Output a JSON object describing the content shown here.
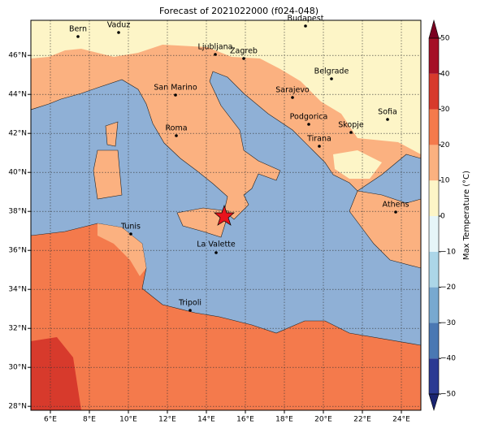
{
  "title": "Forecast of 2021022000 (f024-048)",
  "map": {
    "xlim": [
      5,
      25
    ],
    "ylim": [
      27.8,
      47.8
    ],
    "xticks": [
      {
        "value": 6,
        "label": "6°E"
      },
      {
        "value": 8,
        "label": "8°E"
      },
      {
        "value": 10,
        "label": "10°E"
      },
      {
        "value": 12,
        "label": "12°E"
      },
      {
        "value": 14,
        "label": "14°E"
      },
      {
        "value": 16,
        "label": "16°E"
      },
      {
        "value": 18,
        "label": "18°E"
      },
      {
        "value": 20,
        "label": "20°E"
      },
      {
        "value": 22,
        "label": "22°E"
      },
      {
        "value": 24,
        "label": "24°E"
      }
    ],
    "yticks": [
      {
        "value": 28,
        "label": "28°N"
      },
      {
        "value": 30,
        "label": "30°N"
      },
      {
        "value": 32,
        "label": "32°N"
      },
      {
        "value": 34,
        "label": "34°N"
      },
      {
        "value": 36,
        "label": "36°N"
      },
      {
        "value": 38,
        "label": "38°N"
      },
      {
        "value": 40,
        "label": "40°N"
      },
      {
        "value": 42,
        "label": "42°N"
      },
      {
        "value": 44,
        "label": "44°N"
      },
      {
        "value": 46,
        "label": "46°N"
      }
    ],
    "grid": true,
    "cities": [
      "Bern",
      "Vaduz",
      "Budapest",
      "Ljubljana",
      "Zagreb",
      "Sarajevo",
      "Belgrade",
      "San Marino",
      "Sofia",
      "Podgorica",
      "Skopje",
      "Roma",
      "Tirana",
      "Athens",
      "Tunis",
      "La Valette",
      "Tripoli"
    ]
  },
  "colorbar": {
    "label": "Max Temperature (°C)",
    "clim": [
      -50,
      50
    ],
    "colors": [
      "#2b3a93",
      "#4a78b3",
      "#78a9d0",
      "#acd6e8",
      "#e6f5f8",
      "#fdf5c7",
      "#fbb180",
      "#f47a4c",
      "#d73a2c",
      "#a50f26"
    ],
    "extend_colors": [
      "#1a2470",
      "#7a0020"
    ],
    "ticks": [
      {
        "value": -50,
        "label": "−50"
      },
      {
        "value": -40,
        "label": "−40"
      },
      {
        "value": -30,
        "label": "−30"
      },
      {
        "value": -20,
        "label": "−20"
      },
      {
        "value": -10,
        "label": "−10"
      },
      0,
      10,
      20,
      30,
      40,
      50
    ]
  }
}
